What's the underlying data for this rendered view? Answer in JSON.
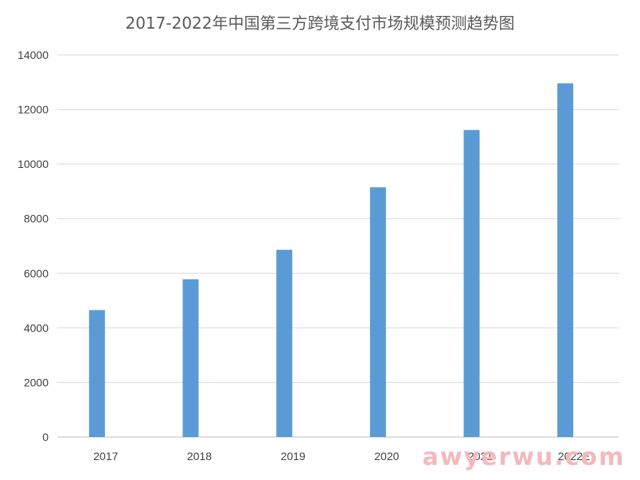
{
  "chart_data": {
    "type": "bar",
    "title": "2017-2022年中国第三方跨境支付市场规模预测趋势图",
    "categories": [
      "2017",
      "2018",
      "2019",
      "2020",
      "2021",
      "2022E"
    ],
    "series": [
      {
        "values": [
          4650,
          5780,
          6860,
          9150,
          11250,
          12960
        ]
      }
    ],
    "yticks": [
      0,
      2000,
      4000,
      6000,
      8000,
      10000,
      12000,
      14000
    ],
    "ylim": [
      0,
      14000
    ],
    "xlabel": "",
    "ylabel": "",
    "grid": true,
    "bar_color": "#5b9bd5"
  },
  "watermark": "awyerwu.com"
}
